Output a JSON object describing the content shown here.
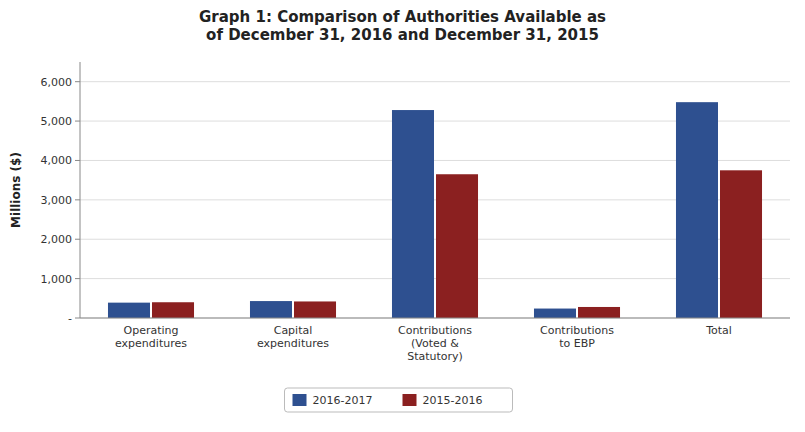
{
  "chart_data": {
    "type": "bar",
    "title": "Graph 1: Comparison of Authorities Available as\nof December 31, 2016 and December 31, 2015",
    "categories": [
      "Operating\nexpenditures",
      "Capital\nexpenditures",
      "Contributions\n(Voted &\nStatutory)",
      "Contributions\nto EBP",
      "Total"
    ],
    "series": [
      {
        "name": "2016-2017",
        "color": "#2E5090",
        "values": [
          390,
          430,
          5280,
          240,
          5480
        ]
      },
      {
        "name": "2015-2016",
        "color": "#8B2020",
        "values": [
          400,
          420,
          3650,
          280,
          3750
        ]
      }
    ],
    "ylabel": "Millions ($)",
    "ylim": [
      0,
      6500
    ],
    "yticks": [
      {
        "value": 0,
        "label": "-"
      },
      {
        "value": 1000,
        "label": "1,000"
      },
      {
        "value": 2000,
        "label": "2,000"
      },
      {
        "value": 3000,
        "label": "3,000"
      },
      {
        "value": 4000,
        "label": "4,000"
      },
      {
        "value": 5000,
        "label": "5,000"
      },
      {
        "value": 6000,
        "label": "6,000"
      }
    ],
    "grid": true,
    "legend": "bottom"
  }
}
